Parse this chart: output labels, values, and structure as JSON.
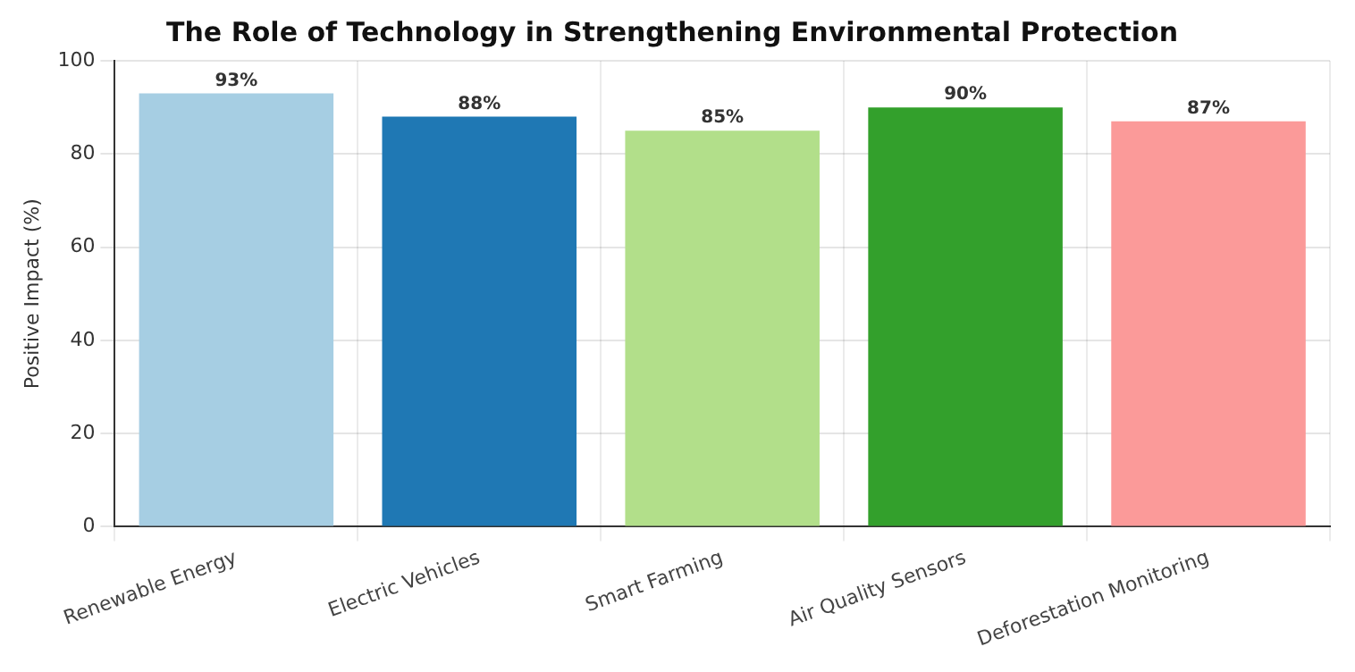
{
  "chart_data": {
    "type": "bar",
    "title": "The Role of Technology in Strengthening Environmental Protection",
    "ylabel": "Positive Impact (%)",
    "categories": [
      "Renewable Energy",
      "Electric Vehicles",
      "Smart Farming",
      "Air Quality Sensors",
      "Deforestation Monitoring"
    ],
    "values": [
      93,
      88,
      85,
      90,
      87
    ],
    "colors": [
      "#a6cee3",
      "#1f78b4",
      "#b2df8a",
      "#33a02c",
      "#fb9a99"
    ],
    "value_labels": [
      "93%",
      "88%",
      "85%",
      "90%",
      "87%"
    ],
    "ylim": [
      0,
      100
    ],
    "yticks": [
      0,
      20,
      40,
      60,
      80,
      100
    ],
    "grid": true
  }
}
